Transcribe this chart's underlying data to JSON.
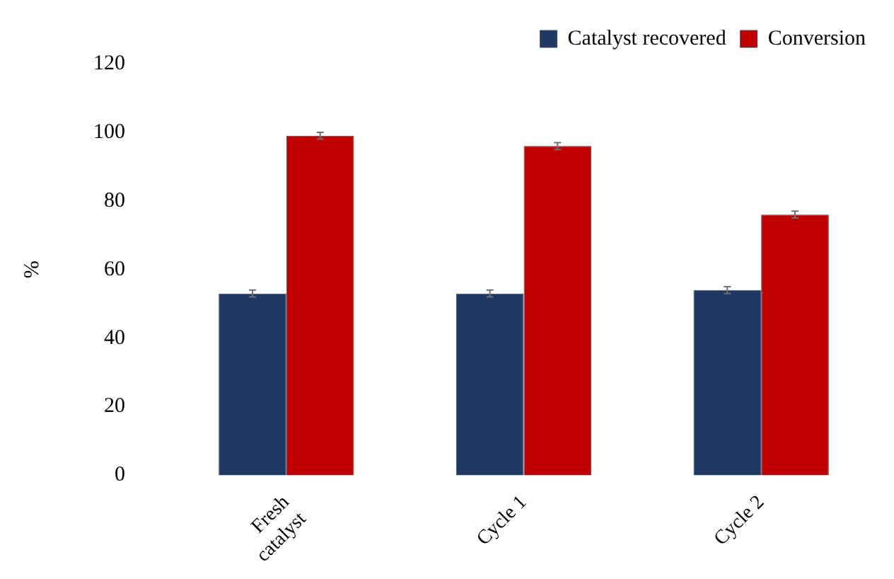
{
  "chart_data": {
    "type": "bar",
    "ylabel": "%",
    "categories": [
      [
        "Fresh",
        "catalyst"
      ],
      "Cycle 1",
      "Cycle 2"
    ],
    "series": [
      {
        "name": "Catalyst recovered",
        "color": "#203864",
        "values": [
          53,
          53,
          54
        ],
        "errors": [
          1,
          1,
          1
        ]
      },
      {
        "name": "Conversion",
        "color": "#c00000",
        "values": [
          99,
          96,
          76
        ],
        "errors": [
          1,
          1,
          1
        ]
      }
    ],
    "ylim": [
      0,
      120
    ],
    "yticks": [
      0,
      20,
      40,
      60,
      80,
      100,
      120
    ],
    "grid": false,
    "legend": "top"
  }
}
